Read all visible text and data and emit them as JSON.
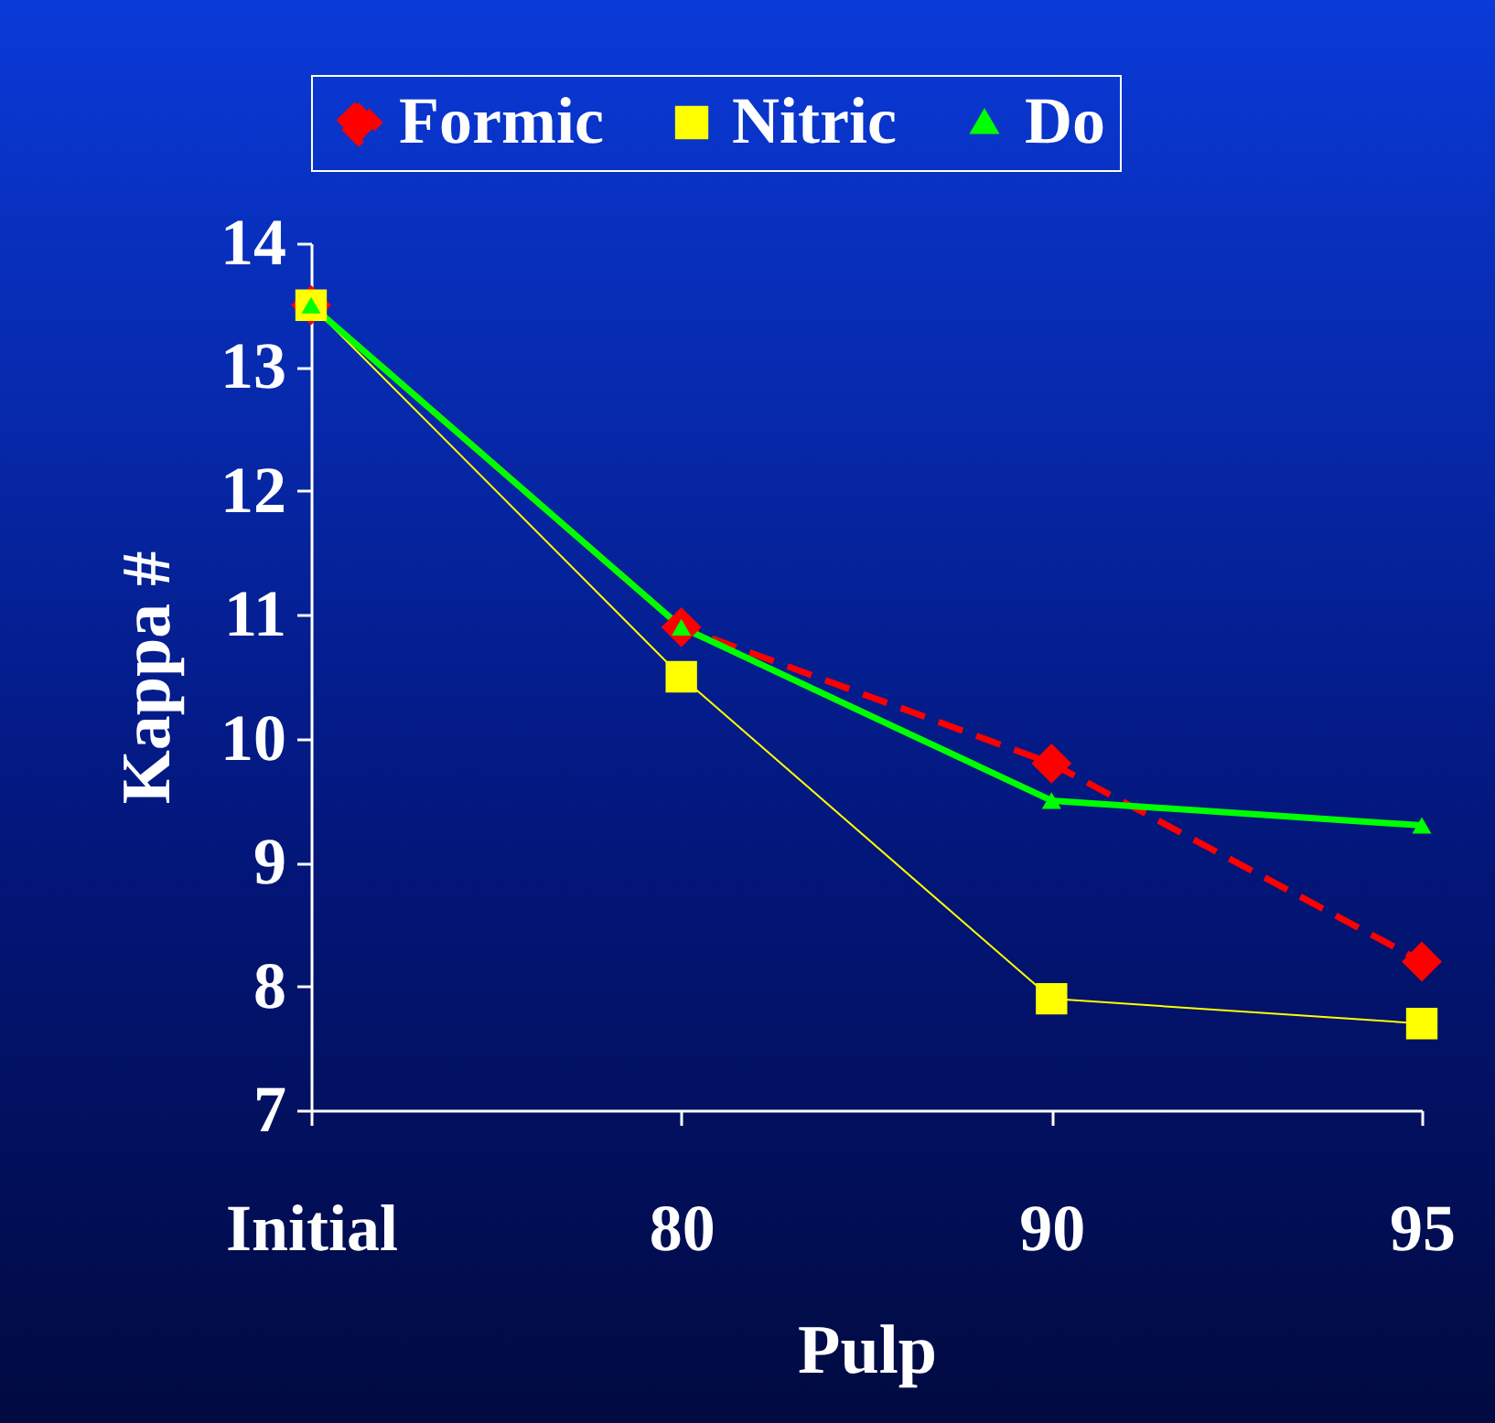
{
  "chart_data": {
    "type": "line",
    "xlabel": "Pulp",
    "ylabel": "Kappa #",
    "categories": [
      "Initial",
      "80",
      "90",
      "95"
    ],
    "ylim": [
      7,
      14
    ],
    "yticks": [
      7,
      8,
      9,
      10,
      11,
      12,
      13,
      14
    ],
    "legend": "top",
    "grid": false,
    "series": [
      {
        "name": "Formic",
        "color": "#ff0000",
        "values": [
          13.5,
          10.9,
          9.8,
          8.2
        ],
        "marker": "diamond",
        "line_style": "dashed"
      },
      {
        "name": "Nitric",
        "color": "#ffff00",
        "values": [
          13.5,
          10.5,
          7.9,
          7.7
        ],
        "marker": "square",
        "line_style": "solid"
      },
      {
        "name": "Do",
        "color": "#00ff00",
        "values": [
          13.5,
          10.9,
          9.5,
          9.3
        ],
        "marker": "triangle",
        "line_style": "solid"
      }
    ]
  }
}
